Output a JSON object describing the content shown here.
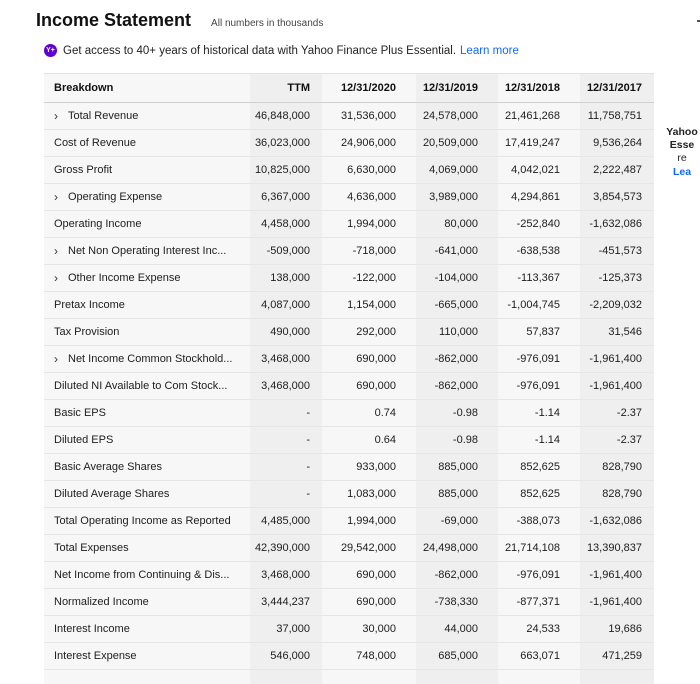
{
  "header": {
    "title": "Income Statement",
    "subtitle": "All numbers in thousands"
  },
  "promo": {
    "icon": "yahoo-plus-icon",
    "icon_text": "Y+",
    "text": "Get access to 40+ years of historical data with Yahoo Finance Plus Essential.",
    "link": "Learn more"
  },
  "side_ad": {
    "line1": "Yahoo",
    "line2": "Esse",
    "line3": "re",
    "line4": "Lea"
  },
  "columns": [
    "Breakdown",
    "TTM",
    "12/31/2020",
    "12/31/2019",
    "12/31/2018",
    "12/31/2017"
  ],
  "rows": [
    {
      "label": "Total Revenue",
      "expandable": true,
      "values": [
        "46,848,000",
        "31,536,000",
        "24,578,000",
        "21,461,268",
        "11,758,751"
      ]
    },
    {
      "label": "Cost of Revenue",
      "expandable": false,
      "values": [
        "36,023,000",
        "24,906,000",
        "20,509,000",
        "17,419,247",
        "9,536,264"
      ]
    },
    {
      "label": "Gross Profit",
      "expandable": false,
      "values": [
        "10,825,000",
        "6,630,000",
        "4,069,000",
        "4,042,021",
        "2,222,487"
      ]
    },
    {
      "label": "Operating Expense",
      "expandable": true,
      "values": [
        "6,367,000",
        "4,636,000",
        "3,989,000",
        "4,294,861",
        "3,854,573"
      ]
    },
    {
      "label": "Operating Income",
      "expandable": false,
      "values": [
        "4,458,000",
        "1,994,000",
        "80,000",
        "-252,840",
        "-1,632,086"
      ]
    },
    {
      "label": "Net Non Operating Interest Inc...",
      "expandable": true,
      "values": [
        "-509,000",
        "-718,000",
        "-641,000",
        "-638,538",
        "-451,573"
      ]
    },
    {
      "label": "Other Income Expense",
      "expandable": true,
      "values": [
        "138,000",
        "-122,000",
        "-104,000",
        "-113,367",
        "-125,373"
      ]
    },
    {
      "label": "Pretax Income",
      "expandable": false,
      "values": [
        "4,087,000",
        "1,154,000",
        "-665,000",
        "-1,004,745",
        "-2,209,032"
      ]
    },
    {
      "label": "Tax Provision",
      "expandable": false,
      "values": [
        "490,000",
        "292,000",
        "110,000",
        "57,837",
        "31,546"
      ]
    },
    {
      "label": "Net Income Common Stockhold...",
      "expandable": true,
      "values": [
        "3,468,000",
        "690,000",
        "-862,000",
        "-976,091",
        "-1,961,400"
      ]
    },
    {
      "label": "Diluted NI Available to Com Stock...",
      "expandable": false,
      "values": [
        "3,468,000",
        "690,000",
        "-862,000",
        "-976,091",
        "-1,961,400"
      ]
    },
    {
      "label": "Basic EPS",
      "expandable": false,
      "values": [
        "-",
        "0.74",
        "-0.98",
        "-1.14",
        "-2.37"
      ]
    },
    {
      "label": "Diluted EPS",
      "expandable": false,
      "values": [
        "-",
        "0.64",
        "-0.98",
        "-1.14",
        "-2.37"
      ]
    },
    {
      "label": "Basic Average Shares",
      "expandable": false,
      "values": [
        "-",
        "933,000",
        "885,000",
        "852,625",
        "828,790"
      ]
    },
    {
      "label": "Diluted Average Shares",
      "expandable": false,
      "values": [
        "-",
        "1,083,000",
        "885,000",
        "852,625",
        "828,790"
      ]
    },
    {
      "label": "Total Operating Income as Reported",
      "expandable": false,
      "values": [
        "4,485,000",
        "1,994,000",
        "-69,000",
        "-388,073",
        "-1,632,086"
      ]
    },
    {
      "label": "Total Expenses",
      "expandable": false,
      "values": [
        "42,390,000",
        "29,542,000",
        "24,498,000",
        "21,714,108",
        "13,390,837"
      ]
    },
    {
      "label": "Net Income from Continuing & Dis...",
      "expandable": false,
      "values": [
        "3,468,000",
        "690,000",
        "-862,000",
        "-976,091",
        "-1,961,400"
      ]
    },
    {
      "label": "Normalized Income",
      "expandable": false,
      "values": [
        "3,444,237",
        "690,000",
        "-738,330",
        "-877,371",
        "-1,961,400"
      ]
    },
    {
      "label": "Interest Income",
      "expandable": false,
      "values": [
        "37,000",
        "30,000",
        "44,000",
        "24,533",
        "19,686"
      ]
    },
    {
      "label": "Interest Expense",
      "expandable": false,
      "values": [
        "546,000",
        "748,000",
        "685,000",
        "663,071",
        "471,259"
      ]
    }
  ]
}
